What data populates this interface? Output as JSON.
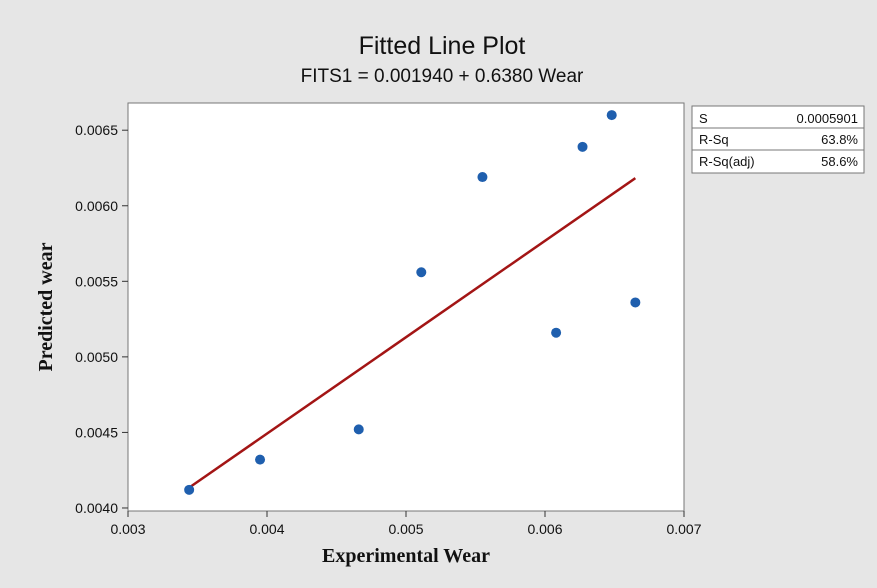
{
  "chart_data": {
    "type": "scatter",
    "title": "Fitted Line Plot",
    "subtitle": "FITS1 = 0.001940 + 0.6380 Wear",
    "xlabel": "Experimental Wear",
    "ylabel": "Predicted wear",
    "xlim": [
      0.003,
      0.007
    ],
    "ylim": [
      0.00398,
      0.00668
    ],
    "xticks": [
      "0.003",
      "0.004",
      "0.005",
      "0.006",
      "0.007"
    ],
    "yticks": [
      "0.0040",
      "0.0045",
      "0.0050",
      "0.0055",
      "0.0060",
      "0.0065"
    ],
    "points": [
      {
        "x": 0.00344,
        "y": 0.00412
      },
      {
        "x": 0.00395,
        "y": 0.00432
      },
      {
        "x": 0.00466,
        "y": 0.00452
      },
      {
        "x": 0.00511,
        "y": 0.00556
      },
      {
        "x": 0.00555,
        "y": 0.00619
      },
      {
        "x": 0.00608,
        "y": 0.00516
      },
      {
        "x": 0.00627,
        "y": 0.00639
      },
      {
        "x": 0.00648,
        "y": 0.0066
      },
      {
        "x": 0.00665,
        "y": 0.00536
      }
    ],
    "fit": {
      "intercept": 0.00194,
      "slope": 0.638,
      "x_range": [
        0.00344,
        0.00665
      ]
    },
    "stats": [
      {
        "label": "S",
        "value": "0.0005901"
      },
      {
        "label": "R-Sq",
        "value": "63.8%"
      },
      {
        "label": "R-Sq(adj)",
        "value": "58.6%"
      }
    ],
    "grid": false,
    "colors": {
      "points": "#1f5fae",
      "fit_line": "#a31515",
      "plot_bg": "#ffffff",
      "figure_bg": "#e6e6e6"
    }
  }
}
